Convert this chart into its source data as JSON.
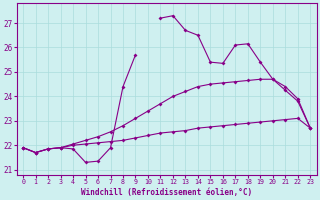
{
  "background_color": "#cff0f0",
  "grid_color": "#aadddd",
  "line_color": "#880088",
  "x_labels": [
    "0",
    "1",
    "2",
    "3",
    "4",
    "5",
    "6",
    "7",
    "8",
    "9",
    "10",
    "11",
    "12",
    "13",
    "14",
    "15",
    "16",
    "17",
    "18",
    "19",
    "20",
    "21",
    "22",
    "23"
  ],
  "xlabel": "Windchill (Refroidissement éolien,°C)",
  "xlabel_color": "#880088",
  "tick_color": "#880088",
  "yticks": [
    21,
    22,
    23,
    24,
    25,
    26,
    27
  ],
  "ylim": [
    20.8,
    27.8
  ],
  "xlim": [
    -0.5,
    23.5
  ],
  "series_jagged": [
    21.9,
    21.7,
    21.85,
    21.9,
    21.85,
    21.3,
    21.35,
    21.9,
    24.4,
    25.7,
    null,
    27.2,
    27.3,
    26.7,
    26.5,
    25.4,
    25.35,
    26.1,
    26.15,
    25.4,
    24.7,
    24.25,
    23.8,
    22.7
  ],
  "series_flat": [
    21.9,
    21.7,
    21.85,
    21.9,
    22.0,
    22.05,
    22.1,
    22.15,
    22.2,
    22.3,
    22.4,
    22.5,
    22.55,
    22.6,
    22.7,
    22.75,
    22.8,
    22.85,
    22.9,
    22.95,
    23.0,
    23.05,
    23.1,
    22.7
  ],
  "series_arc": [
    21.9,
    21.7,
    21.85,
    21.9,
    22.05,
    22.2,
    22.35,
    22.55,
    22.8,
    23.1,
    23.4,
    23.7,
    24.0,
    24.2,
    24.4,
    24.5,
    24.55,
    24.6,
    24.65,
    24.7,
    24.7,
    24.4,
    23.9,
    22.7
  ]
}
